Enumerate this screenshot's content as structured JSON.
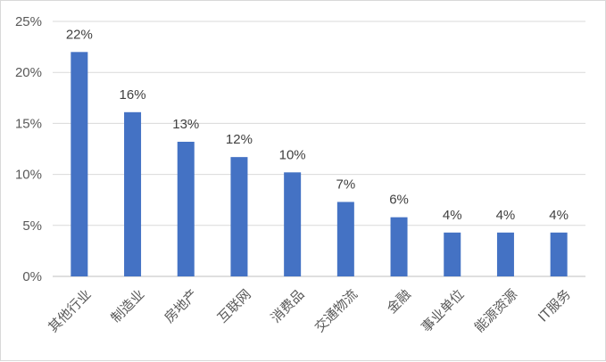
{
  "chart_data": {
    "type": "bar",
    "title": "",
    "xlabel": "",
    "ylabel": "",
    "categories": [
      "其他行业",
      "制造业",
      "房地产",
      "互联网",
      "消费品",
      "交通物流",
      "金融",
      "事业单位",
      "能源资源",
      "IT服务"
    ],
    "values": [
      22,
      16,
      13,
      12,
      10,
      7,
      6,
      4,
      4,
      4
    ],
    "value_labels": [
      "22%",
      "16%",
      "13%",
      "12%",
      "10%",
      "7%",
      "6%",
      "4%",
      "4%",
      "4%"
    ],
    "plotted_values": [
      22.0,
      16.1,
      13.2,
      11.7,
      10.2,
      7.3,
      5.8,
      4.3,
      4.3,
      4.3
    ],
    "ylim": [
      0,
      25
    ],
    "yticks": [
      0,
      5,
      10,
      15,
      20,
      25
    ],
    "ytick_labels": [
      "0%",
      "5%",
      "10%",
      "15%",
      "20%",
      "25%"
    ],
    "grid": true,
    "legend": "none",
    "colors": {
      "bar": "#4472c4",
      "grid": "#d9d9d9",
      "axis": "#bfbfbf"
    }
  }
}
